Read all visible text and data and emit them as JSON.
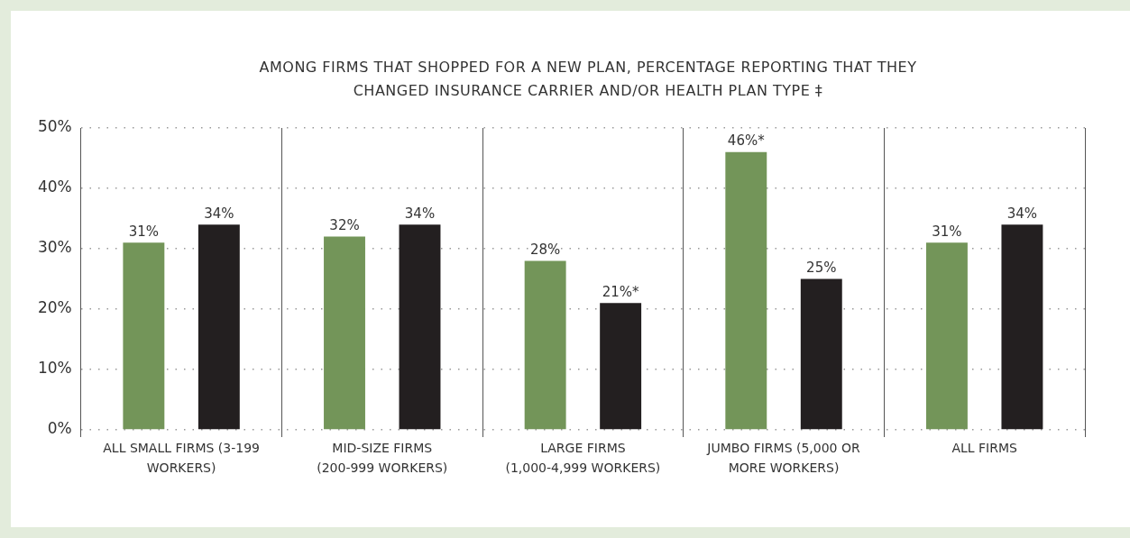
{
  "chart_data": {
    "type": "bar",
    "title": "AMONG FIRMS THAT SHOPPED FOR A NEW PLAN, PERCENTAGE REPORTING THAT THEY CHANGED INSURANCE CARRIER AND/OR HEALTH PLAN TYPE ‡",
    "categories": [
      "ALL SMALL FIRMS (3-199 WORKERS)",
      "MID-SIZE FIRMS (200-999 WORKERS)",
      "LARGE FIRMS (1,000-4,999 WORKERS)",
      "JUMBO FIRMS (5,000 OR MORE WORKERS)",
      "ALL FIRMS"
    ],
    "series": [
      {
        "color": "#739559",
        "values": [
          31,
          32,
          28,
          46,
          31
        ],
        "value_labels": [
          "31%",
          "32%",
          "28%",
          "46%*",
          "31%"
        ]
      },
      {
        "color": "#231f20",
        "values": [
          34,
          34,
          21,
          25,
          34
        ],
        "value_labels": [
          "34%",
          "34%",
          "21%*",
          "25%",
          "34%"
        ]
      }
    ],
    "ylim": [
      0,
      50
    ],
    "yticks": [
      {
        "value": 0,
        "label": "0%"
      },
      {
        "value": 10,
        "label": "10%"
      },
      {
        "value": 20,
        "label": "20%"
      },
      {
        "value": 30,
        "label": "30%"
      },
      {
        "value": 40,
        "label": "40%"
      },
      {
        "value": 50,
        "label": "50%"
      }
    ],
    "grid": true,
    "legend": false
  }
}
